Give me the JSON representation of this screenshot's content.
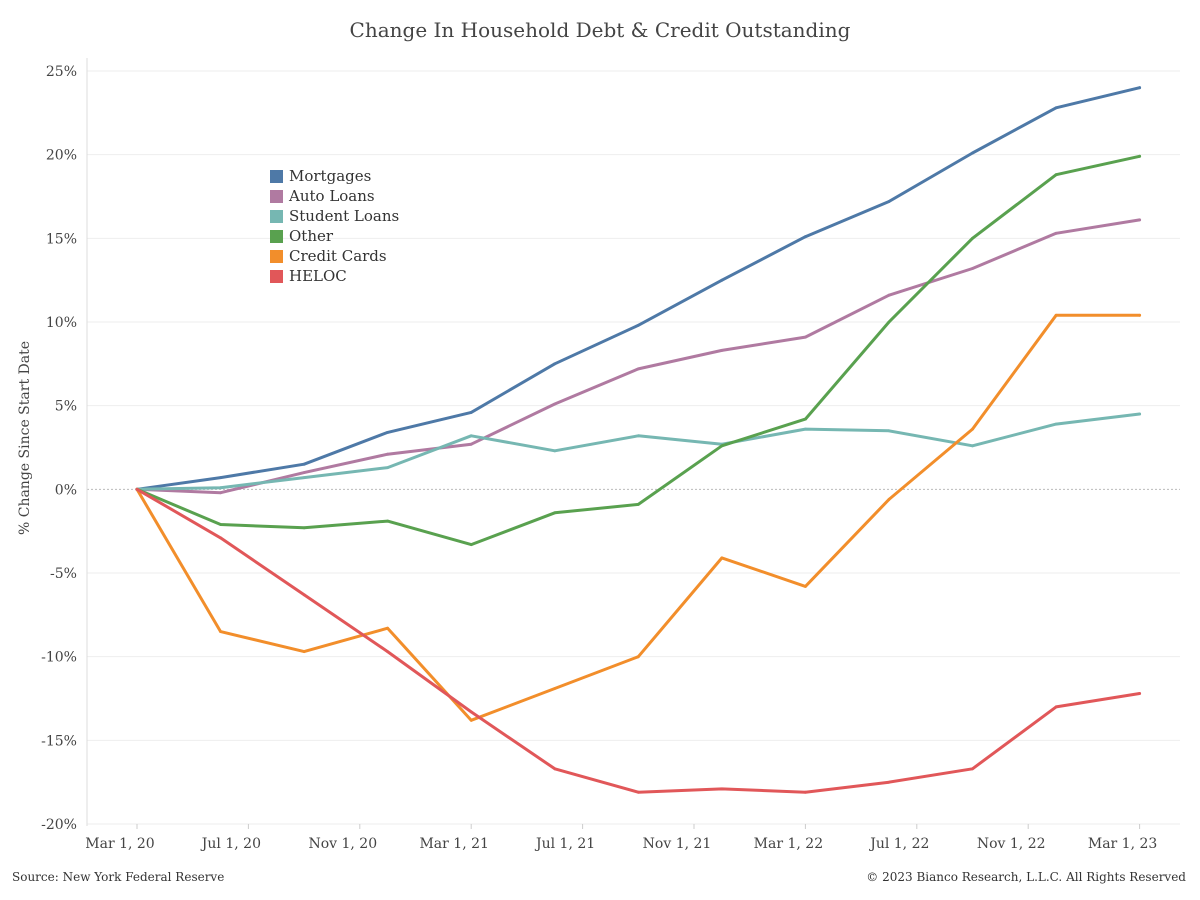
{
  "chart_data": {
    "type": "line",
    "title": "Change In Household Debt & Credit Outstanding",
    "ylabel": "% Change Since Start Date",
    "xlabel": "",
    "x_ticks": [
      "Mar 1, 20",
      "Jul 1, 20",
      "Nov 1, 20",
      "Mar 1, 21",
      "Jul 1, 21",
      "Nov 1, 21",
      "Mar 1, 22",
      "Jul 1, 22",
      "Nov 1, 22",
      "Mar 1, 23"
    ],
    "x": [
      "Mar 1, 20",
      "Jun 1, 20",
      "Sep 1, 20",
      "Dec 1, 20",
      "Mar 1, 21",
      "Jun 1, 21",
      "Sep 1, 21",
      "Dec 1, 21",
      "Mar 1, 22",
      "Jun 1, 22",
      "Sep 1, 22",
      "Dec 1, 22",
      "Mar 1, 23"
    ],
    "y_ticks": [
      "25%",
      "20%",
      "15%",
      "10%",
      "5%",
      "0%",
      "-5%",
      "-10%",
      "-15%",
      "-20%"
    ],
    "ylim": [
      -20,
      25
    ],
    "grid": true,
    "legend_position": "top-left",
    "series": [
      {
        "name": "Mortgages",
        "color": "#4e79a7",
        "values": [
          0,
          0.7,
          1.5,
          3.4,
          4.6,
          7.5,
          9.8,
          12.5,
          15.1,
          17.2,
          20.1,
          22.8,
          24.0
        ]
      },
      {
        "name": "Auto Loans",
        "color": "#b07aa1",
        "values": [
          0,
          -0.2,
          1.0,
          2.1,
          2.7,
          5.1,
          7.2,
          8.3,
          9.1,
          11.6,
          13.2,
          15.3,
          16.1
        ]
      },
      {
        "name": "Student Loans",
        "color": "#76b7b2",
        "values": [
          0,
          0.1,
          0.7,
          1.3,
          3.2,
          2.3,
          3.2,
          2.7,
          3.6,
          3.5,
          2.6,
          3.9,
          4.5
        ]
      },
      {
        "name": "Other",
        "color": "#59a14f",
        "values": [
          0,
          -2.1,
          -2.3,
          -1.9,
          -3.3,
          -1.4,
          -0.9,
          2.6,
          4.2,
          10.0,
          15.0,
          18.8,
          19.9
        ]
      },
      {
        "name": "Credit Cards",
        "color": "#f28e2b",
        "values": [
          0,
          -8.5,
          -9.7,
          -8.3,
          -13.8,
          -11.9,
          -10.0,
          -4.1,
          -5.8,
          -0.6,
          3.6,
          10.4,
          10.4
        ]
      },
      {
        "name": "HELOC",
        "color": "#e15759",
        "values": [
          0,
          -2.9,
          -6.3,
          -9.7,
          -13.3,
          -16.7,
          -18.1,
          -17.9,
          -18.1,
          -17.5,
          -16.7,
          -13.0,
          -12.2
        ]
      }
    ]
  },
  "footer": {
    "source": "Source: New York Federal Reserve",
    "copyright": "© 2023 Bianco Research, L.L.C. All Rights Reserved"
  }
}
